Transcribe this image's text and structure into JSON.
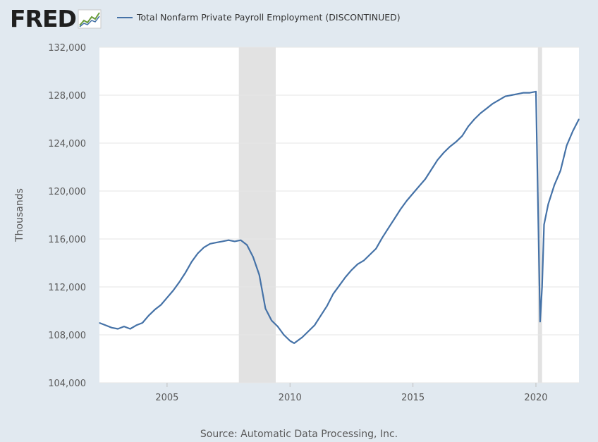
{
  "logo": {
    "text": "FRED",
    "mark": "fred-chart-mark-icon"
  },
  "legend": {
    "label": "Total Nonfarm Private Payroll Employment (DISCONTINUED)"
  },
  "source": "Source: Automatic Data Processing, Inc.",
  "colors": {
    "series": "#4572a7",
    "recession": "#e2e2e2",
    "background": "#e1e9f0",
    "plot": "#ffffff",
    "grid": "#e6e6e6"
  },
  "chart_data": {
    "type": "line",
    "title": "",
    "xlabel": "",
    "ylabel": "Thousands",
    "ylim": [
      104000,
      132000
    ],
    "xlim": [
      2002.25,
      2021.75
    ],
    "yticks": [
      104000,
      108000,
      112000,
      116000,
      120000,
      124000,
      128000,
      132000
    ],
    "ytick_labels": [
      "104,000",
      "108,000",
      "112,000",
      "116,000",
      "120,000",
      "124,000",
      "128,000",
      "132,000"
    ],
    "xticks": [
      2005,
      2010,
      2015,
      2020
    ],
    "xtick_labels": [
      "2005",
      "2010",
      "2015",
      "2020"
    ],
    "grid": true,
    "legend_position": "top",
    "recessions": [
      [
        2007.92,
        2009.42
      ],
      [
        2020.08,
        2020.25
      ]
    ],
    "series": [
      {
        "name": "Total Nonfarm Private Payroll Employment (DISCONTINUED)",
        "x": [
          2002.25,
          2002.5,
          2002.75,
          2003.0,
          2003.25,
          2003.5,
          2003.75,
          2004.0,
          2004.25,
          2004.5,
          2004.75,
          2005.0,
          2005.25,
          2005.5,
          2005.75,
          2006.0,
          2006.25,
          2006.5,
          2006.75,
          2007.0,
          2007.25,
          2007.5,
          2007.75,
          2008.0,
          2008.25,
          2008.5,
          2008.75,
          2009.0,
          2009.25,
          2009.5,
          2009.75,
          2010.0,
          2010.17,
          2010.5,
          2010.75,
          2011.0,
          2011.25,
          2011.5,
          2011.75,
          2012.0,
          2012.25,
          2012.5,
          2012.75,
          2013.0,
          2013.25,
          2013.5,
          2013.75,
          2014.0,
          2014.25,
          2014.5,
          2014.75,
          2015.0,
          2015.25,
          2015.5,
          2015.75,
          2016.0,
          2016.25,
          2016.5,
          2016.75,
          2017.0,
          2017.25,
          2017.5,
          2017.75,
          2018.0,
          2018.25,
          2018.5,
          2018.75,
          2019.0,
          2019.25,
          2019.5,
          2019.75,
          2020.0,
          2020.17,
          2020.25,
          2020.33,
          2020.5,
          2020.75,
          2021.0,
          2021.25,
          2021.5,
          2021.75
        ],
        "values": [
          109000,
          108800,
          108600,
          108500,
          108700,
          108500,
          108800,
          109000,
          109600,
          110100,
          110500,
          111100,
          111700,
          112400,
          113200,
          114100,
          114800,
          115300,
          115600,
          115700,
          115800,
          115900,
          115800,
          115900,
          115500,
          114500,
          113000,
          110200,
          109200,
          108700,
          108000,
          107500,
          107300,
          107800,
          108300,
          108800,
          109600,
          110400,
          111400,
          112100,
          112800,
          113400,
          113900,
          114200,
          114700,
          115200,
          116100,
          116900,
          117700,
          118500,
          119200,
          119800,
          120400,
          121000,
          121800,
          122600,
          123200,
          123700,
          124100,
          124600,
          125400,
          126000,
          126500,
          126900,
          127300,
          127600,
          127900,
          128000,
          128100,
          128200,
          128200,
          128300,
          109100,
          112000,
          117200,
          118900,
          120500,
          121700,
          123800,
          125000,
          126000
        ]
      }
    ]
  }
}
